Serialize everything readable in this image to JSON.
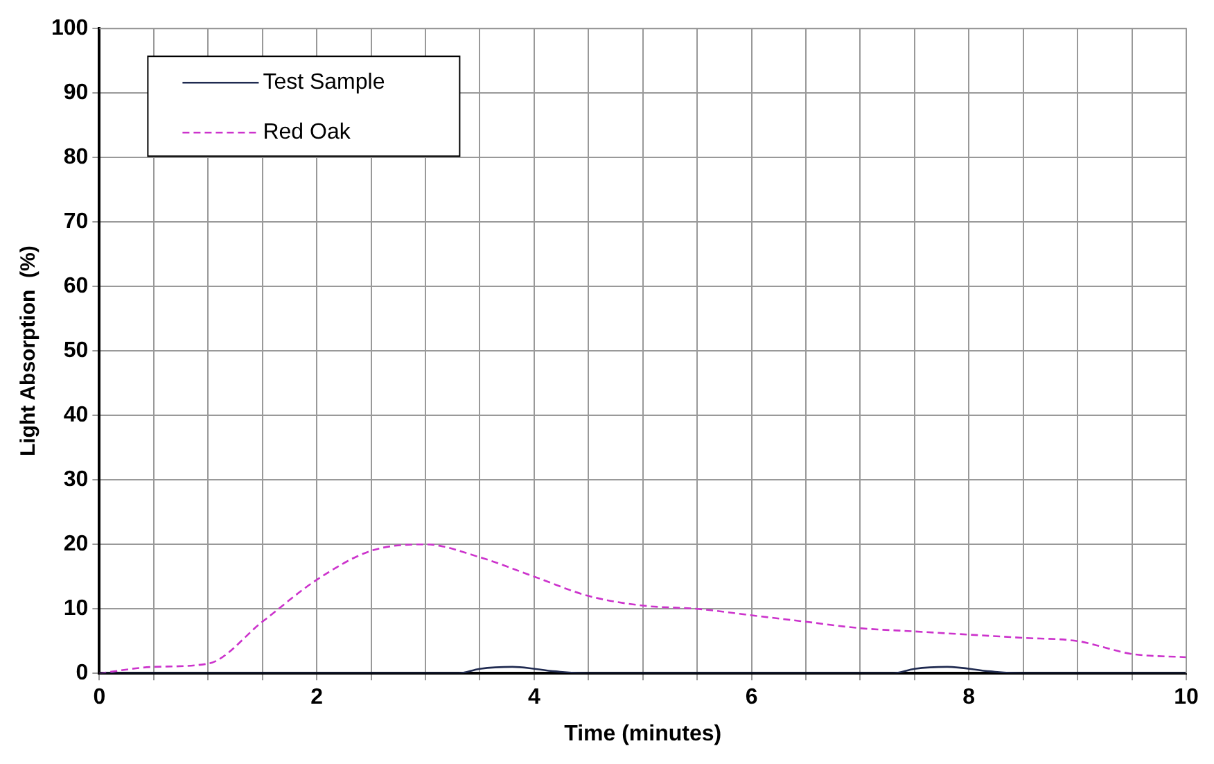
{
  "chart_data": {
    "type": "line",
    "xlabel": "Time (minutes)",
    "ylabel": "Light Absorption  (%)",
    "xlim": [
      0,
      10
    ],
    "xticks": [
      0,
      {
        "value": 0.5,
        "label": null
      },
      {
        "value": 1,
        "label": null
      },
      {
        "value": 1.5,
        "label": null
      },
      2,
      {
        "value": 2.5,
        "label": null
      },
      {
        "value": 3,
        "label": null
      },
      {
        "value": 3.5,
        "label": null
      },
      4,
      {
        "value": 4.5,
        "label": null
      },
      {
        "value": 5,
        "label": null
      },
      {
        "value": 5.5,
        "label": null
      },
      6,
      {
        "value": 6.5,
        "label": null
      },
      {
        "value": 7,
        "label": null
      },
      {
        "value": 7.5,
        "label": null
      },
      8,
      {
        "value": 8.5,
        "label": null
      },
      {
        "value": 9,
        "label": null
      },
      {
        "value": 9.5,
        "label": null
      },
      10
    ],
    "ylim": [
      0,
      100
    ],
    "yticks": [
      0,
      10,
      20,
      30,
      40,
      50,
      60,
      70,
      80,
      90,
      100
    ],
    "series": [
      {
        "name": "Test Sample",
        "color": "#1f2a50",
        "line_style": "solid",
        "x": [
          0,
          1,
          2,
          3,
          3.3,
          3.5,
          3.8,
          4.2,
          4.5,
          5,
          6,
          7,
          7.3,
          7.5,
          7.8,
          8.2,
          8.5,
          9,
          10
        ],
        "values": [
          0,
          0,
          0,
          0,
          0,
          0.7,
          1,
          0.3,
          0,
          0,
          0,
          0,
          0,
          0.7,
          1,
          0.3,
          0,
          0,
          0
        ]
      },
      {
        "name": "Red Oak",
        "color": "#cc33cc",
        "line_style": "dashed",
        "x": [
          0,
          0.5,
          1,
          1.5,
          2,
          2.5,
          3,
          3.5,
          4,
          4.5,
          5,
          5.5,
          6,
          6.5,
          7,
          7.5,
          8,
          8.5,
          9,
          9.5,
          10
        ],
        "values": [
          0,
          1,
          1.5,
          8,
          14.5,
          19,
          20,
          18,
          15,
          12,
          10.5,
          10,
          9,
          8,
          7,
          6.5,
          6,
          5.5,
          5,
          3,
          2.5
        ]
      }
    ],
    "grid": true,
    "legend": "top left",
    "marker": "none"
  }
}
